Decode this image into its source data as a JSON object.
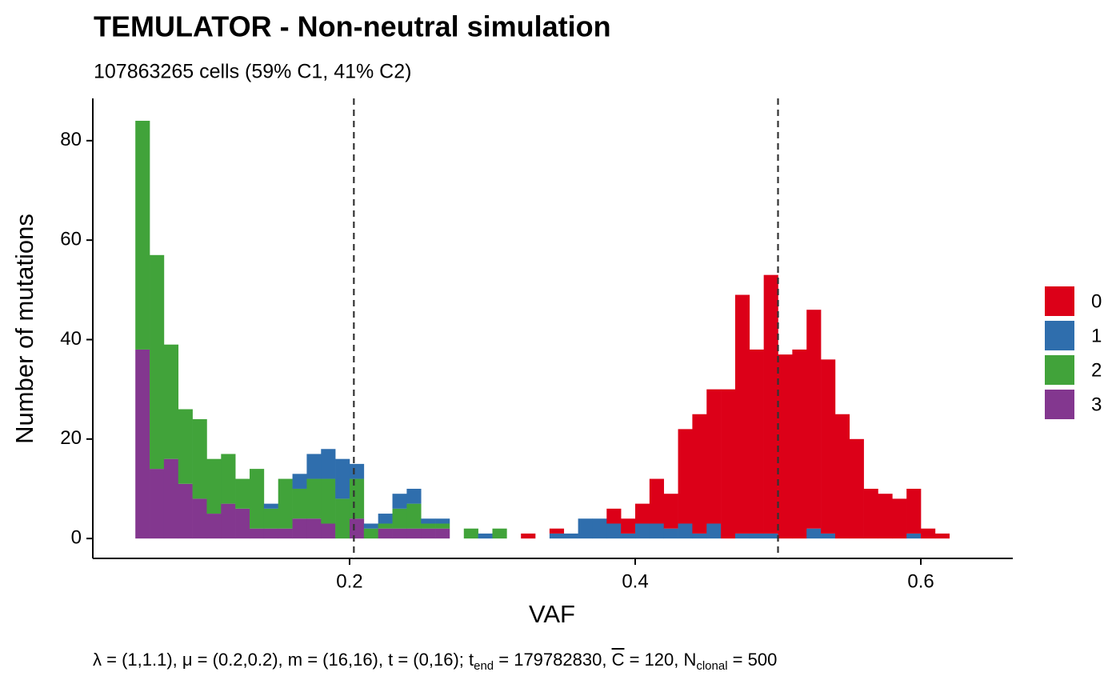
{
  "chart_data": {
    "type": "histogram",
    "title": "TEMULATOR - Non-neutral simulation",
    "subtitle": "107863265 cells (59% C1, 41% C2)",
    "x_label": "VAF",
    "y_label": "Number of mutations",
    "caption": [
      "λ = (1,1.1), μ = (0.2,0.2), m = (16,16), t = (0,16); t",
      "end",
      " = 179782830, ",
      "C",
      " = 120, N",
      "clonal",
      " = 500"
    ],
    "bins": [
      0.05,
      0.06,
      0.07,
      0.08,
      0.09,
      0.1,
      0.11,
      0.12,
      0.13,
      0.14,
      0.15,
      0.16,
      0.17,
      0.18,
      0.19,
      0.2,
      0.21,
      0.22,
      0.23,
      0.24,
      0.25,
      0.26,
      0.27,
      0.28,
      0.29,
      0.3,
      0.31,
      0.32,
      0.33,
      0.34,
      0.35,
      0.36,
      0.37,
      0.38,
      0.39,
      0.4,
      0.41,
      0.42,
      0.43,
      0.44,
      0.45,
      0.46,
      0.47,
      0.48,
      0.49,
      0.5,
      0.51,
      0.52,
      0.53,
      0.54,
      0.55,
      0.56,
      0.57,
      0.58,
      0.59,
      0.6,
      0.61,
      0.62
    ],
    "series": [
      {
        "name": "0",
        "color": "#dc0018",
        "values": [
          0,
          0,
          0,
          0,
          0,
          0,
          0,
          0,
          0,
          0,
          0,
          0,
          0,
          0,
          0,
          0,
          0,
          0,
          0,
          0,
          0,
          0,
          0,
          0,
          0,
          0,
          0,
          1,
          0,
          1,
          0,
          0,
          0,
          3,
          3,
          4,
          9,
          7,
          19,
          24,
          27,
          30,
          48,
          37,
          52,
          37,
          38,
          44,
          35,
          25,
          20,
          10,
          9,
          8,
          9,
          2,
          1
        ]
      },
      {
        "name": "1",
        "color": "#2f6ead",
        "values": [
          0,
          0,
          0,
          0,
          0,
          0,
          0,
          0,
          0,
          1,
          0,
          3,
          5,
          6,
          8,
          3,
          1,
          2,
          3,
          3,
          1,
          1,
          0,
          0,
          1,
          0,
          0,
          0,
          0,
          1,
          1,
          4,
          4,
          3,
          1,
          3,
          3,
          2,
          3,
          1,
          3,
          0,
          1,
          1,
          1,
          0,
          0,
          2,
          1,
          0,
          0,
          0,
          0,
          0,
          1,
          0,
          0
        ]
      },
      {
        "name": "2",
        "color": "#41a33a",
        "values": [
          46,
          43,
          23,
          15,
          16,
          11,
          10,
          6,
          12,
          4,
          10,
          6,
          8,
          9,
          8,
          8,
          2,
          1,
          4,
          5,
          1,
          1,
          0,
          2,
          0,
          2,
          0,
          0,
          0,
          0,
          0,
          0,
          0,
          0,
          0,
          0,
          0,
          0,
          0,
          0,
          0,
          0,
          0,
          0,
          0,
          0,
          0,
          0,
          0,
          0,
          0,
          0,
          0,
          0,
          0,
          0,
          0
        ]
      },
      {
        "name": "3",
        "color": "#83378f",
        "values": [
          38,
          14,
          16,
          11,
          8,
          5,
          7,
          6,
          2,
          2,
          2,
          4,
          4,
          3,
          0,
          4,
          0,
          2,
          2,
          2,
          2,
          2,
          0,
          0,
          0,
          0,
          0,
          0,
          0,
          0,
          0,
          0,
          0,
          0,
          0,
          0,
          0,
          0,
          0,
          0,
          0,
          0,
          0,
          0,
          0,
          0,
          0,
          0,
          0,
          0,
          0,
          0,
          0,
          0,
          0,
          0,
          0
        ]
      }
    ],
    "vlines": [
      0.203,
      0.5
    ],
    "xlim": [
      0.0202,
      0.6644
    ],
    "xticks": [
      0.2,
      0.4,
      0.6
    ],
    "ylim": [
      -4,
      88.5
    ],
    "yticks": [
      0,
      20,
      40,
      60,
      80
    ],
    "stacked": true,
    "grid": false,
    "legend": "right"
  }
}
